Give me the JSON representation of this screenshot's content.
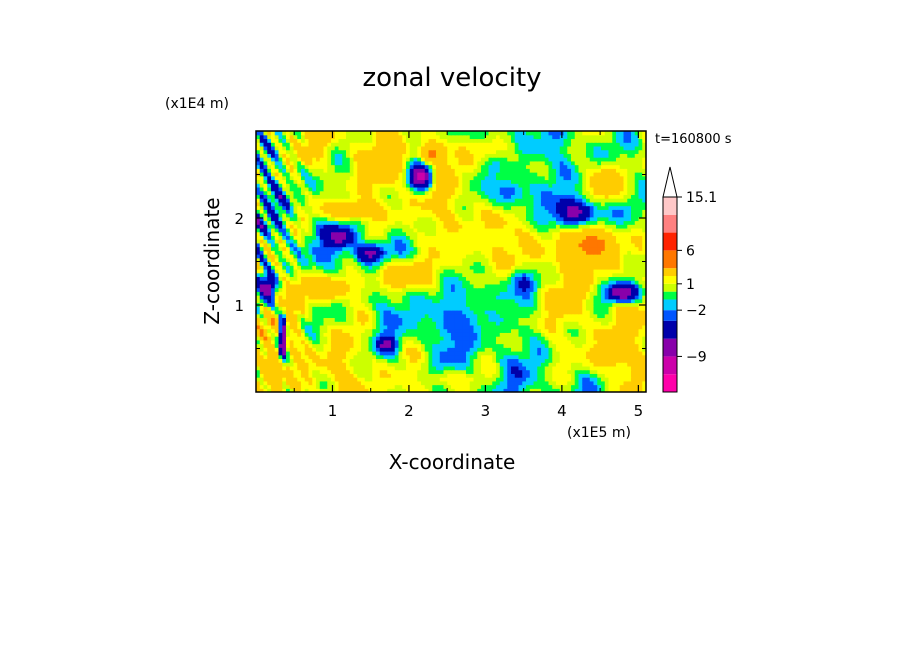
{
  "chart_data": {
    "type": "heatmap",
    "title": "zonal velocity",
    "xlabel": "X-coordinate",
    "ylabel": "Z-coordinate",
    "x_unit_label": "(x1E5 m)",
    "y_unit_label": "(x1E4 m)",
    "time_label": "t=160800 s",
    "xlim": [
      0,
      5.1
    ],
    "ylim": [
      0,
      3.0
    ],
    "x_ticks": [
      1,
      2,
      3,
      4,
      5
    ],
    "y_ticks": [
      1,
      2
    ],
    "x_tick_labels": [
      "1",
      "2",
      "3",
      "4",
      "5"
    ],
    "y_tick_labels": [
      "1",
      "2"
    ],
    "colorbar": {
      "levels": [
        -12,
        -9,
        -6,
        -4,
        -2,
        -1,
        0,
        1,
        2,
        3,
        6,
        9,
        12,
        15.1
      ],
      "colors": [
        "#ff00aa",
        "#cc00aa",
        "#8800aa",
        "#0000aa",
        "#0055ff",
        "#00ccff",
        "#00ff44",
        "#ccff00",
        "#ffff00",
        "#ffcc00",
        "#ff7700",
        "#ff2200",
        "#ff8080",
        "#ffc8c8"
      ],
      "extend_color": "#ffffff",
      "tick_labels": [
        {
          "value": 15.1,
          "label": "15.1"
        },
        {
          "value": 6,
          "label": "6"
        },
        {
          "value": 1,
          "label": "1"
        },
        {
          "value": -2,
          "label": "−2"
        },
        {
          "value": -9,
          "label": "−9"
        }
      ]
    },
    "field_features": [
      {
        "x": 2.15,
        "z": 2.5,
        "rx": 0.2,
        "rz": 0.22,
        "value": -7
      },
      {
        "x": 2.3,
        "z": 2.75,
        "rx": 0.2,
        "rz": 0.15,
        "value": 7
      },
      {
        "x": 1.1,
        "z": 1.8,
        "rx": 0.25,
        "rz": 0.15,
        "value": -5
      },
      {
        "x": 1.5,
        "z": 1.6,
        "rx": 0.25,
        "rz": 0.15,
        "value": -5
      },
      {
        "x": 1.7,
        "z": 0.55,
        "rx": 0.15,
        "rz": 0.12,
        "value": -5
      },
      {
        "x": 4.2,
        "z": 2.05,
        "rx": 0.4,
        "rz": 0.25,
        "value": -6
      },
      {
        "x": 4.8,
        "z": 1.15,
        "rx": 0.3,
        "rz": 0.15,
        "value": -6
      },
      {
        "x": 4.4,
        "z": 1.7,
        "rx": 0.45,
        "rz": 0.3,
        "value": 7
      },
      {
        "x": 4.6,
        "z": 2.4,
        "rx": 0.35,
        "rz": 0.3,
        "value": 5
      },
      {
        "x": 0.15,
        "z": 1.2,
        "rx": 0.15,
        "rz": 0.2,
        "value": -6
      },
      {
        "x": 0.35,
        "z": 0.6,
        "rx": 0.06,
        "rz": 0.4,
        "value": -7
      },
      {
        "x": 1.7,
        "z": 2.6,
        "rx": 0.3,
        "rz": 0.2,
        "value": 5
      },
      {
        "x": 0.9,
        "z": 1.2,
        "rx": 0.6,
        "rz": 0.2,
        "value": 5
      },
      {
        "x": 1.9,
        "z": 1.35,
        "rx": 0.4,
        "rz": 0.2,
        "value": 6
      },
      {
        "x": 1.2,
        "z": 2.1,
        "rx": 0.5,
        "rz": 0.15,
        "value": 5
      },
      {
        "x": 3.2,
        "z": 1.1,
        "rx": 0.5,
        "rz": 0.35,
        "value": 0
      },
      {
        "x": 2.6,
        "z": 0.8,
        "rx": 0.4,
        "rz": 0.3,
        "value": -1.5
      },
      {
        "x": 3.5,
        "z": 1.25,
        "rx": 0.2,
        "rz": 0.2,
        "value": -2.5
      },
      {
        "x": 2.7,
        "z": 1.7,
        "rx": 0.5,
        "rz": 0.3,
        "value": 2.5
      },
      {
        "x": 2.6,
        "z": 0.15,
        "rx": 0.5,
        "rz": 0.12,
        "value": 2.5
      },
      {
        "x": 4.6,
        "z": 0.4,
        "rx": 0.4,
        "rz": 0.2,
        "value": 4
      },
      {
        "x": 0.2,
        "z": 0.25,
        "rx": 0.2,
        "rz": 0.2,
        "value": 6
      },
      {
        "x": 3.3,
        "z": 2.3,
        "rx": 0.4,
        "rz": 0.25,
        "value": -1.5
      },
      {
        "x": 3.0,
        "z": 2.8,
        "rx": 0.3,
        "rz": 0.15,
        "value": 3
      }
    ]
  }
}
